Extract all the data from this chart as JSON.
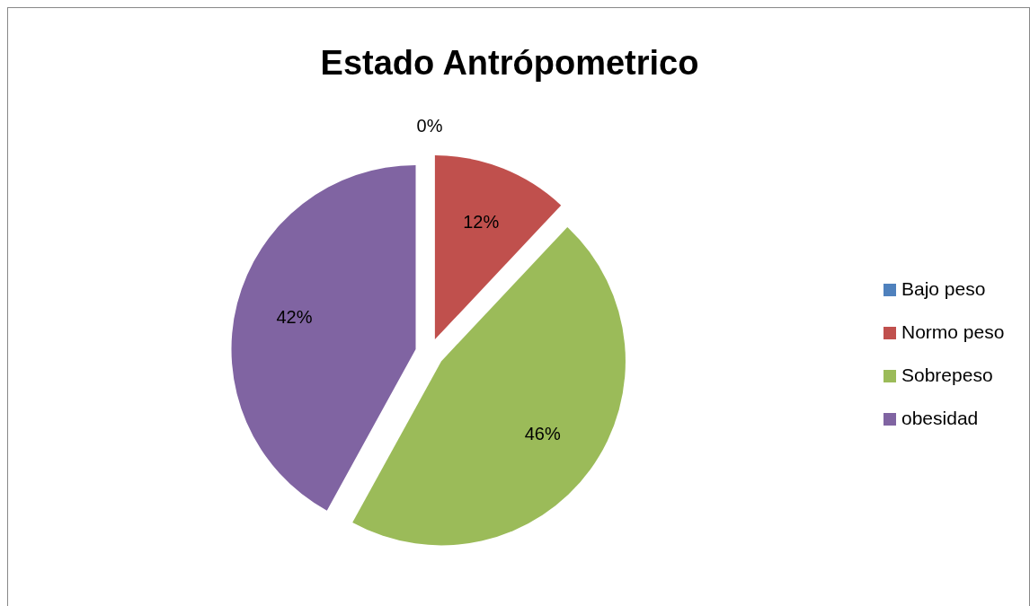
{
  "chart_data": {
    "type": "pie",
    "title": "Estado Antrópometrico",
    "categories": [
      "Bajo peso",
      "Normo peso",
      "Sobrepeso",
      "obesidad"
    ],
    "values": [
      0,
      12,
      46,
      42
    ],
    "colors": [
      "#4f81bd",
      "#c0504d",
      "#9bbb59",
      "#8064a2"
    ],
    "data_labels": true,
    "value_labels": [
      "0%",
      "12%",
      "46%",
      "42%"
    ],
    "legend": "right"
  }
}
